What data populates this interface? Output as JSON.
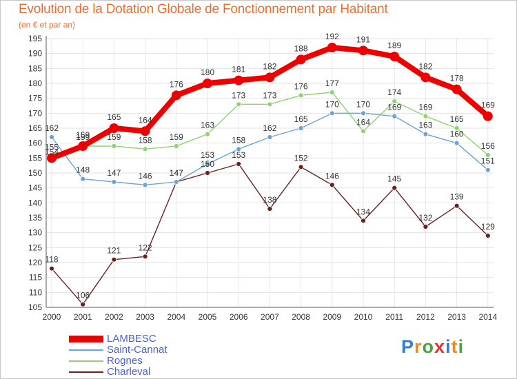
{
  "title": "Evolution de la Dotation Globale de Fonctionnement par Habitant",
  "subtitle": "(en € et par an)",
  "brand": {
    "letters": [
      "P",
      "r",
      "o",
      "x",
      "i",
      "t",
      "i"
    ],
    "colors": [
      "#2f7fd6",
      "#f08a1e",
      "#4aa33a",
      "#e3322a",
      "#2f7fd6",
      "#f08a1e",
      "#4aa33a"
    ]
  },
  "chart_data": {
    "type": "line",
    "title": "Evolution de la Dotation Globale de Fonctionnement par Habitant",
    "subtitle": "(en € et par an)",
    "xlabel": "",
    "ylabel": "",
    "categories": [
      "2000",
      "2001",
      "2002",
      "2003",
      "2004",
      "2005",
      "2006",
      "2007",
      "2008",
      "2009",
      "2010",
      "2011",
      "2012",
      "2013",
      "2014"
    ],
    "ylim": [
      105,
      195
    ],
    "yticks": [
      105,
      110,
      115,
      120,
      125,
      130,
      135,
      140,
      145,
      150,
      155,
      160,
      165,
      170,
      175,
      180,
      185,
      190,
      195
    ],
    "grid": true,
    "legend": "bottom-left",
    "series": [
      {
        "name": "LAMBESC",
        "color": "#ee0000",
        "values": [
          155,
          159,
          165,
          164,
          176,
          180,
          181,
          182,
          188,
          192,
          191,
          189,
          182,
          178,
          169
        ]
      },
      {
        "name": "Saint-Cannat",
        "color": "#6aa3d5",
        "values": [
          162,
          148,
          147,
          146,
          147,
          153,
          158,
          162,
          165,
          170,
          170,
          169,
          163,
          160,
          151
        ]
      },
      {
        "name": "Rognes",
        "color": "#8ed36b",
        "values": [
          154,
          159,
          159,
          158,
          159,
          163,
          173,
          173,
          176,
          177,
          164,
          174,
          169,
          165,
          156
        ]
      },
      {
        "name": "Charleval",
        "color": "#6b2020",
        "values": [
          118,
          106,
          121,
          122,
          147,
          150,
          153,
          138,
          152,
          146,
          134,
          145,
          132,
          139,
          129
        ]
      }
    ]
  }
}
